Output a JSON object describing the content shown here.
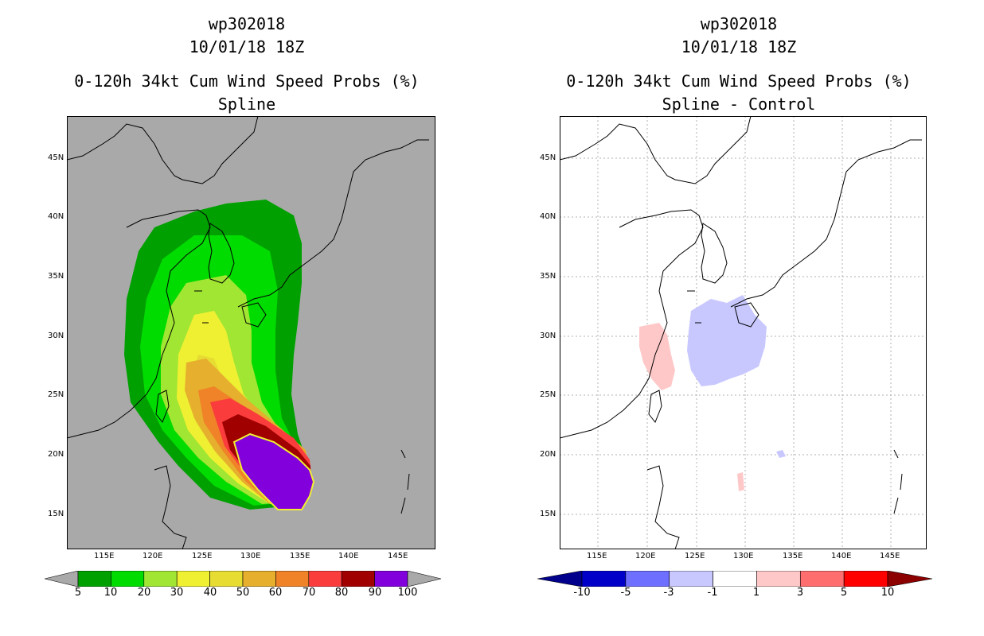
{
  "left": {
    "title_line1": "wp302018",
    "title_line2": "10/01/18 18Z",
    "title_line3": "0-120h 34kt Cum Wind Speed Probs (%)",
    "title_line4": "Spline",
    "colorbar_labels": [
      "5",
      "10",
      "20",
      "30",
      "40",
      "50",
      "60",
      "70",
      "80",
      "90",
      "100"
    ],
    "colorbar_colors": [
      "#00a000",
      "#00dc00",
      "#a0e632",
      "#f0f032",
      "#e6dc32",
      "#e6af2d",
      "#f08228",
      "#fa3c3c",
      "#a00000",
      "#8200dc"
    ],
    "background": "#a9a9a9"
  },
  "right": {
    "title_line1": "wp302018",
    "title_line2": "10/01/18 18Z",
    "title_line3": "0-120h 34kt Cum Wind Speed Probs (%)",
    "title_line4": "Spline - Control",
    "colorbar_labels": [
      "-10",
      "-5",
      "-3",
      "-1",
      "1",
      "3",
      "5",
      "10"
    ],
    "colorbar_colors": [
      "#0000c8",
      "#6e6eff",
      "#c8c8ff",
      "#ffffff",
      "#ffc8c8",
      "#ff6e6e",
      "#ff0000"
    ],
    "colorbar_low": "#00008c",
    "colorbar_high": "#8c0000"
  },
  "axes": {
    "lon_labels": [
      "115E",
      "120E",
      "125E",
      "130E",
      "135E",
      "140E",
      "145E"
    ],
    "lat_labels": [
      "45N",
      "40N",
      "35N",
      "30N",
      "25N",
      "20N",
      "15N"
    ]
  }
}
